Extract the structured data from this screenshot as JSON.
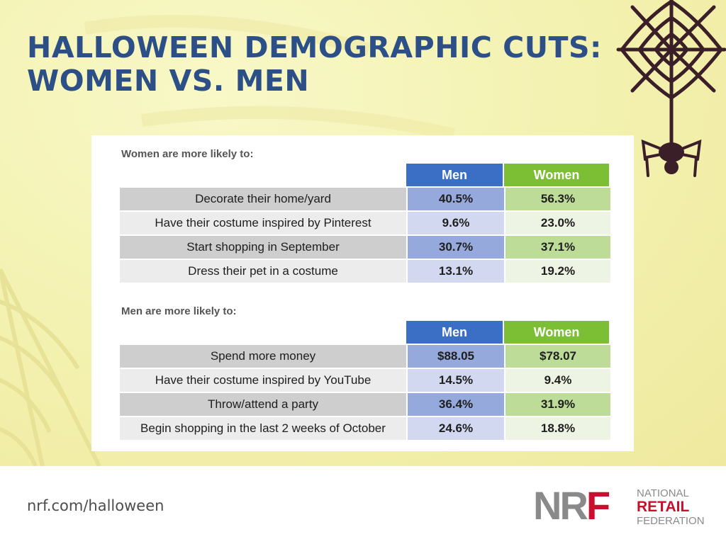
{
  "title": {
    "line1": "HALLOWEEN DEMOGRAPHIC CUTS:",
    "line2": "WOMEN VS. MEN"
  },
  "tables": [
    {
      "heading": "Women are more likely to:",
      "columns": {
        "men": "Men",
        "women": "Women"
      },
      "rows": [
        {
          "label": "Decorate their home/yard",
          "men": "40.5%",
          "women": "56.3%"
        },
        {
          "label": "Have their costume inspired by Pinterest",
          "men": "9.6%",
          "women": "23.0%"
        },
        {
          "label": "Start shopping in September",
          "men": "30.7%",
          "women": "37.1%"
        },
        {
          "label": "Dress their pet in a costume",
          "men": "13.1%",
          "women": "19.2%"
        }
      ]
    },
    {
      "heading": "Men are more likely to:",
      "columns": {
        "men": "Men",
        "women": "Women"
      },
      "rows": [
        {
          "label": "Spend more money",
          "men": "$88.05",
          "women": "$78.07"
        },
        {
          "label": "Have their costume inspired by YouTube",
          "men": "14.5%",
          "women": "9.4%"
        },
        {
          "label": "Throw/attend a party",
          "men": "36.4%",
          "women": "31.9%"
        },
        {
          "label": "Begin shopping in the last 2 weeks of October",
          "men": "24.6%",
          "women": "18.8%"
        }
      ]
    }
  ],
  "footer": {
    "url": "nrf.com/halloween",
    "logo": {
      "mark_left": "NR",
      "mark_right": "F",
      "line1": "NATIONAL",
      "line2": "RETAIL",
      "line3": "FEDERATION"
    }
  },
  "colors": {
    "title": "#2d4f87",
    "men_header": "#3b6fc6",
    "women_header": "#7cbf35",
    "brand_red": "#c8102e"
  }
}
